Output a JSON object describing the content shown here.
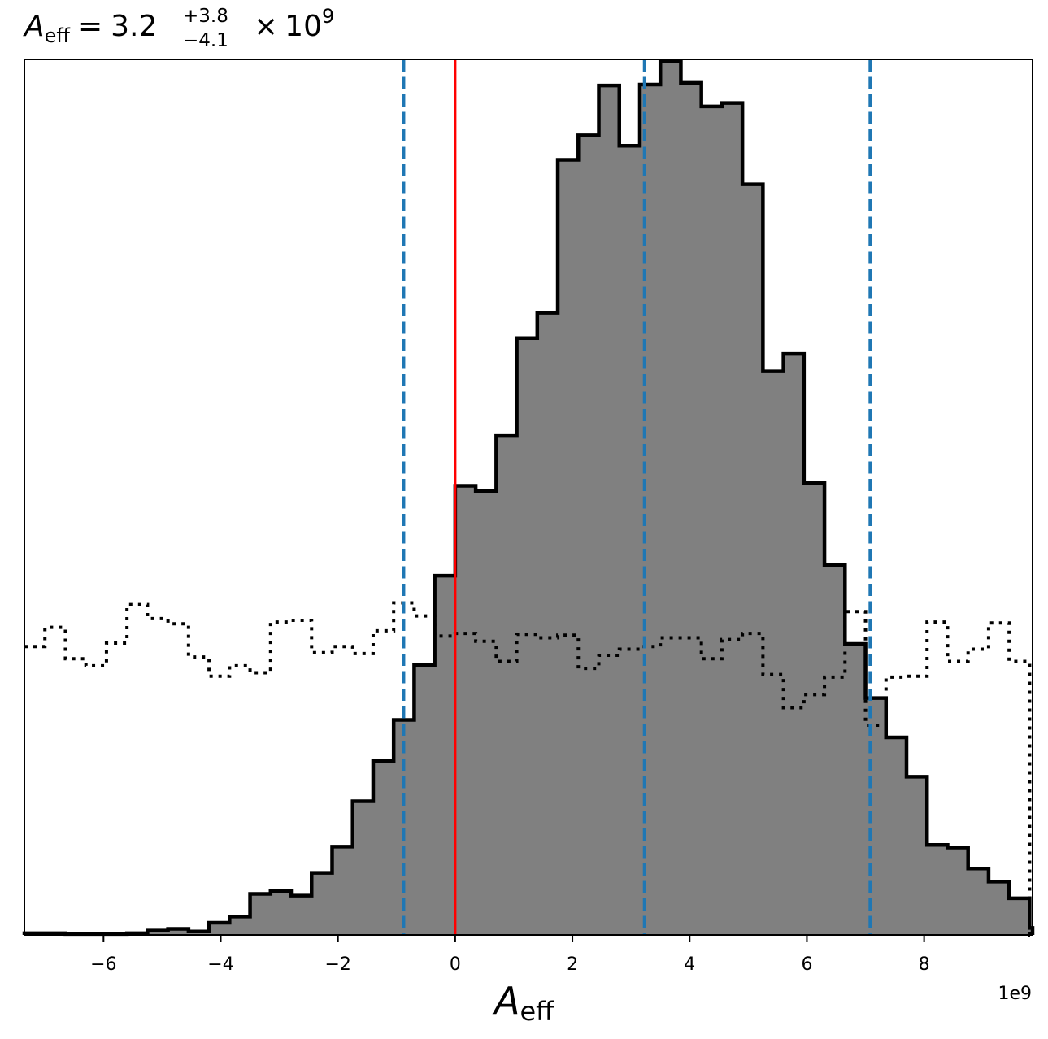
{
  "chart_data": {
    "type": "histogram",
    "title": {
      "symbol": "A",
      "subscript": "eff",
      "equals": "=",
      "value": "3.2",
      "upper": "+3.8",
      "lower": "−4.1",
      "multiplier": "×",
      "base": "10",
      "exponent": "9"
    },
    "xlabel": {
      "symbol": "A",
      "subscript": "eff"
    },
    "offset_text": "1e9",
    "xlim": [
      -7.35,
      9.85
    ],
    "ylim": [
      0,
      1.0
    ],
    "x_scale_note": "x values in units of 1e9",
    "xticks": [
      -6,
      -4,
      -2,
      0,
      2,
      4,
      6,
      8
    ],
    "xtick_labels": [
      "−6",
      "−4",
      "−2",
      "0",
      "2",
      "4",
      "6",
      "8"
    ],
    "posterior": {
      "bin_edges": [
        -7.35,
        -7.0,
        -6.65,
        -6.3,
        -5.95,
        -5.6,
        -5.25,
        -4.9,
        -4.55,
        -4.2,
        -3.85,
        -3.5,
        -3.15,
        -2.8,
        -2.45,
        -2.1,
        -1.75,
        -1.4,
        -1.05,
        -0.7,
        -0.35,
        0.0,
        0.35,
        0.7,
        1.05,
        1.4,
        1.75,
        2.1,
        2.45,
        2.8,
        3.15,
        3.5,
        3.85,
        4.2,
        4.55,
        4.9,
        5.25,
        5.6,
        5.95,
        6.3,
        6.65,
        7.0,
        7.35,
        7.7,
        8.05,
        8.4,
        8.75,
        9.1,
        9.45,
        9.8,
        9.85
      ],
      "heights": [
        0.002,
        0.002,
        0.001,
        0.001,
        0.001,
        0.002,
        0.005,
        0.007,
        0.004,
        0.014,
        0.021,
        0.047,
        0.05,
        0.045,
        0.071,
        0.101,
        0.153,
        0.199,
        0.246,
        0.309,
        0.411,
        0.514,
        0.508,
        0.571,
        0.683,
        0.712,
        0.887,
        0.915,
        0.972,
        0.903,
        0.973,
        1.0,
        0.975,
        0.948,
        0.952,
        0.859,
        0.645,
        0.665,
        0.517,
        0.423,
        0.333,
        0.271,
        0.226,
        0.181,
        0.103,
        0.1,
        0.076,
        0.061,
        0.042,
        0.008
      ]
    },
    "prior": {
      "bin_edges": [
        -7.35,
        -7.0,
        -6.65,
        -6.3,
        -5.95,
        -5.6,
        -5.25,
        -4.9,
        -4.55,
        -4.2,
        -3.85,
        -3.5,
        -3.15,
        -2.8,
        -2.45,
        -2.1,
        -1.75,
        -1.4,
        -1.05,
        -0.7,
        -0.35,
        0.0,
        0.35,
        0.7,
        1.05,
        1.4,
        1.75,
        2.1,
        2.45,
        2.8,
        3.15,
        3.5,
        3.85,
        4.2,
        4.55,
        4.9,
        5.25,
        5.6,
        5.95,
        6.3,
        6.65,
        7.0,
        7.35,
        7.7,
        8.05,
        8.4,
        8.75,
        9.1,
        9.45,
        9.8,
        9.85
      ],
      "heights": [
        0.33,
        0.352,
        0.316,
        0.308,
        0.334,
        0.378,
        0.362,
        0.356,
        0.318,
        0.296,
        0.308,
        0.3,
        0.358,
        0.36,
        0.323,
        0.33,
        0.322,
        0.348,
        0.38,
        0.365,
        0.342,
        0.345,
        0.336,
        0.313,
        0.344,
        0.34,
        0.343,
        0.305,
        0.32,
        0.327,
        0.33,
        0.34,
        0.34,
        0.316,
        0.338,
        0.345,
        0.298,
        0.26,
        0.275,
        0.295,
        0.37,
        0.24,
        0.295,
        0.296,
        0.358,
        0.313,
        0.327,
        0.357,
        0.313,
        0.0
      ]
    },
    "vlines": [
      {
        "x": 0.0,
        "color": "#ff0000",
        "style": "solid"
      },
      {
        "x": -0.88,
        "color": "#1f77b4",
        "style": "dashed"
      },
      {
        "x": 3.23,
        "color": "#1f77b4",
        "style": "dashed"
      },
      {
        "x": 7.08,
        "color": "#1f77b4",
        "style": "dashed"
      }
    ],
    "colors": {
      "fill": "#808080",
      "edge": "#000000",
      "truth": "#ff0000",
      "quantiles": "#1f77b4",
      "prior": "#000000"
    },
    "grid": false,
    "legend": "none"
  }
}
